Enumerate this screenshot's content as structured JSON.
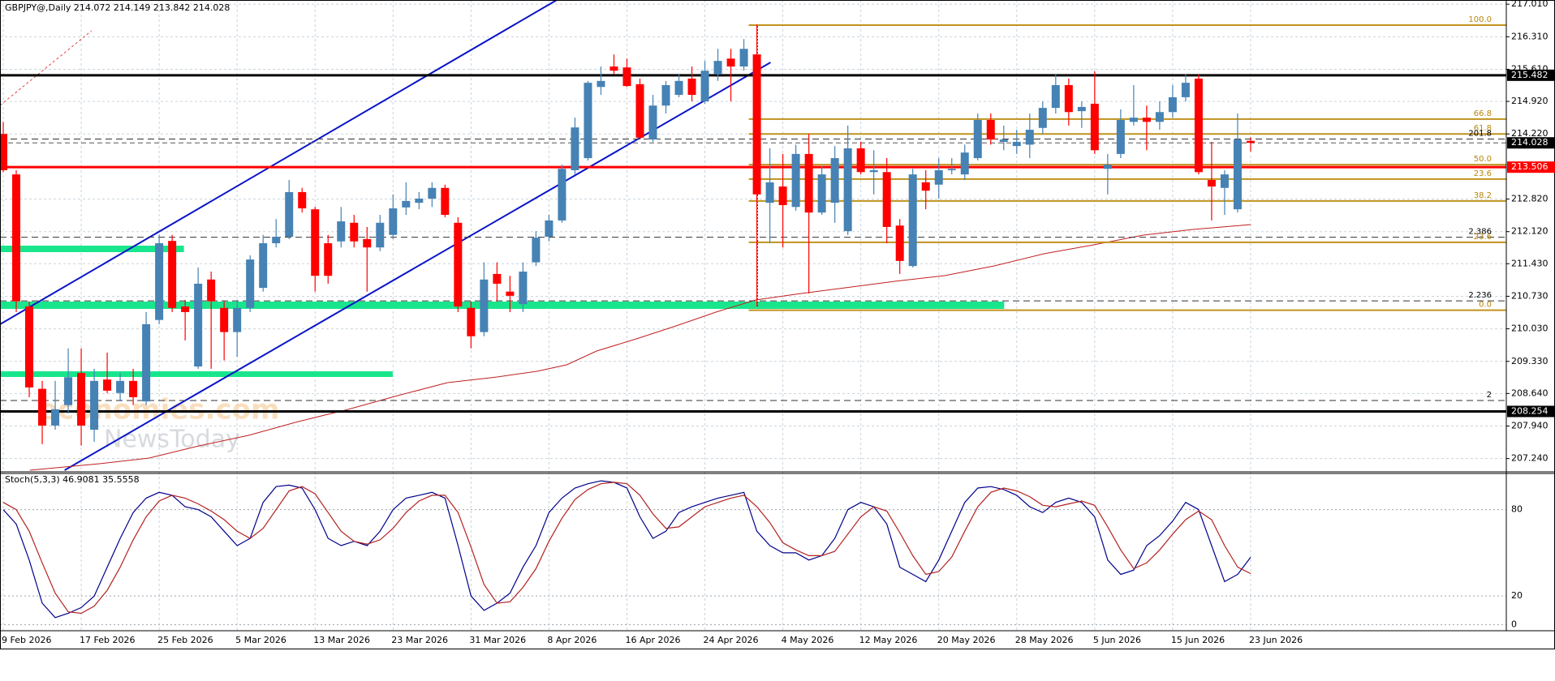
{
  "chart_data": [
    {
      "type": "candlestick",
      "symbol": "GBPJPY@,Daily",
      "up_color": "#4682b4",
      "down_color": "#ff0000",
      "grid": true,
      "categories": [
        "9 Feb 2026",
        null,
        null,
        null,
        null,
        null,
        "17 Feb 2026",
        null,
        null,
        null,
        null,
        null,
        "25 Feb 2026",
        null,
        null,
        null,
        null,
        null,
        "5 Mar 2026",
        null,
        null,
        null,
        null,
        null,
        "13 Mar 2026",
        null,
        null,
        null,
        null,
        null,
        "23 Mar 2026",
        null,
        null,
        null,
        null,
        null,
        "31 Mar 2026",
        null,
        null,
        null,
        null,
        null,
        "8 Apr 2026",
        null,
        null,
        null,
        null,
        null,
        "16 Apr 2026",
        null,
        null,
        null,
        null,
        null,
        "24 Apr 2026",
        null,
        null,
        null,
        null,
        null,
        "4 May 2026",
        null,
        null,
        null,
        null,
        null,
        "12 May 2026",
        null,
        null,
        null,
        null,
        null,
        "20 May 2026",
        null,
        null,
        null,
        null,
        null,
        "28 May 2026",
        null,
        null,
        null,
        null,
        null,
        "5 Jun 2026",
        null,
        null,
        null,
        null,
        null,
        "15 Jun 2026",
        null,
        null,
        null,
        null,
        null,
        "23 Jun 2026"
      ],
      "open": [
        214.22,
        213.35,
        210.51,
        208.74,
        207.95,
        208.39,
        209.08,
        207.86,
        208.94,
        208.65,
        208.91,
        208.47,
        210.22,
        211.92,
        210.51,
        209.22,
        211.09,
        210.48,
        209.96,
        210.48,
        210.91,
        211.87,
        212.01,
        212.97,
        212.6,
        211.87,
        211.91,
        212.31,
        211.96,
        211.78,
        212.05,
        212.64,
        212.74,
        212.83,
        213.06,
        212.31,
        210.48,
        209.96,
        211.21,
        210.83,
        210.56,
        211.46,
        212.01,
        212.36,
        213.44,
        213.7,
        215.23,
        215.67,
        215.65,
        215.29,
        214.1,
        214.83,
        215.06,
        215.41,
        214.92,
        215.5,
        215.84,
        215.67,
        215.93,
        212.74,
        213.09,
        212.65,
        213.79,
        212.53,
        212.74,
        212.13,
        213.91,
        213.4,
        213.4,
        212.25,
        211.38,
        213.18,
        213.13,
        213.44,
        213.35,
        213.7,
        214.52,
        214.05,
        213.96,
        213.99,
        214.35,
        214.78,
        215.27,
        214.71,
        214.87,
        213.47,
        213.79,
        214.48,
        214.57,
        214.48,
        214.69,
        215.01,
        215.41,
        213.23,
        213.06,
        212.6,
        214.072
      ],
      "high": [
        214.48,
        213.44,
        210.62,
        208.91,
        208.91,
        209.61,
        209.61,
        209.17,
        209.52,
        209.08,
        209.17,
        210.39,
        212.05,
        212.05,
        210.65,
        211.35,
        211.26,
        210.62,
        210.65,
        211.61,
        212.05,
        212.39,
        213.23,
        213.06,
        212.65,
        212.05,
        212.65,
        212.48,
        212.22,
        212.48,
        212.92,
        213.18,
        212.97,
        213.18,
        213.13,
        212.43,
        210.62,
        211.46,
        211.46,
        211.17,
        211.46,
        212.13,
        212.48,
        213.56,
        214.57,
        215.36,
        215.67,
        215.93,
        215.84,
        215.41,
        215.06,
        215.36,
        215.5,
        215.67,
        215.79,
        216.05,
        216.05,
        216.26,
        216.57,
        213.91,
        213.79,
        213.99,
        214.22,
        213.53,
        213.96,
        214.4,
        214.05,
        213.87,
        213.7,
        212.39,
        213.47,
        213.44,
        213.7,
        213.7,
        213.99,
        214.66,
        214.66,
        214.4,
        214.31,
        214.66,
        214.92,
        215.5,
        215.41,
        214.92,
        215.57,
        213.79,
        214.75,
        215.27,
        214.83,
        214.92,
        215.27,
        215.5,
        215.5,
        214.05,
        213.44,
        214.66,
        214.149
      ],
      "low": [
        213.4,
        210.39,
        208.56,
        207.55,
        207.86,
        208.21,
        207.52,
        207.6,
        208.65,
        208.47,
        208.39,
        208.39,
        210.13,
        210.39,
        209.78,
        209.17,
        209.17,
        209.35,
        209.43,
        210.39,
        210.83,
        211.78,
        211.96,
        212.53,
        210.83,
        211.0,
        211.78,
        211.78,
        210.83,
        211.7,
        211.96,
        212.48,
        212.6,
        212.65,
        212.43,
        210.39,
        209.61,
        209.87,
        210.62,
        210.39,
        210.39,
        211.38,
        211.91,
        212.31,
        213.35,
        213.65,
        215.06,
        215.5,
        215.23,
        214.1,
        214.05,
        214.66,
        215.01,
        214.92,
        214.87,
        215.36,
        214.92,
        215.58,
        210.51,
        211.87,
        211.78,
        212.57,
        210.79,
        212.48,
        212.31,
        212.05,
        213.35,
        212.92,
        211.87,
        211.21,
        211.35,
        212.6,
        212.83,
        213.35,
        213.23,
        213.65,
        213.99,
        213.87,
        213.79,
        213.7,
        214.22,
        214.66,
        214.4,
        214.35,
        213.79,
        212.92,
        213.7,
        214.4,
        213.87,
        214.31,
        214.57,
        214.92,
        213.35,
        212.36,
        212.48,
        212.53,
        213.842
      ],
      "close": [
        213.44,
        210.62,
        208.77,
        207.95,
        208.3,
        208.99,
        207.95,
        208.91,
        208.7,
        208.91,
        208.56,
        210.13,
        211.87,
        210.48,
        210.39,
        211.0,
        210.62,
        209.96,
        210.48,
        211.52,
        211.87,
        212.01,
        212.97,
        212.62,
        211.17,
        211.17,
        212.34,
        211.91,
        211.78,
        212.31,
        212.62,
        212.78,
        212.83,
        213.06,
        212.48,
        210.51,
        209.87,
        211.09,
        211.0,
        210.74,
        211.26,
        211.99,
        212.36,
        213.47,
        214.36,
        215.32,
        215.36,
        215.58,
        215.25,
        214.14,
        214.83,
        215.27,
        215.36,
        215.06,
        215.58,
        215.79,
        215.67,
        216.05,
        212.92,
        213.18,
        212.69,
        213.79,
        212.53,
        213.35,
        213.7,
        213.91,
        213.4,
        213.44,
        212.22,
        211.49,
        213.35,
        213.0,
        213.44,
        213.47,
        213.82,
        214.52,
        214.1,
        214.1,
        214.05,
        214.31,
        214.78,
        215.27,
        214.69,
        214.8,
        213.87,
        213.56,
        214.52,
        214.57,
        214.48,
        214.69,
        215.01,
        215.32,
        213.4,
        213.09,
        213.35,
        214.1,
        214.028
      ],
      "ylim": [
        206.99,
        217.1
      ],
      "yticks": [
        {
          "value": 217.01,
          "label": "217.010"
        },
        {
          "value": 216.31,
          "label": "216.310"
        },
        {
          "value": 215.61,
          "label": "215.610"
        },
        {
          "value": 214.92,
          "label": "214.920"
        },
        {
          "value": 214.22,
          "label": "214.220"
        },
        {
          "value": 212.82,
          "label": "212.820"
        },
        {
          "value": 212.12,
          "label": "212.120"
        },
        {
          "value": 211.43,
          "label": "211.430"
        },
        {
          "value": 210.73,
          "label": "210.730"
        },
        {
          "value": 210.03,
          "label": "210.030"
        },
        {
          "value": 209.33,
          "label": "209.330"
        },
        {
          "value": 208.64,
          "label": "208.640"
        },
        {
          "value": 207.94,
          "label": "207.940"
        },
        {
          "value": 207.24,
          "label": "207.240"
        }
      ],
      "levels": [
        {
          "value": 215.482,
          "color": "#000000"
        },
        {
          "value": 213.506,
          "color": "#ff0000"
        },
        {
          "value": 208.254,
          "color": "#000000"
        }
      ],
      "fib_levels": [
        {
          "text": "100.0",
          "price": 216.56
        },
        {
          "text": "66.8",
          "price": 214.54
        },
        {
          "text": "61.8",
          "price": 214.22
        },
        {
          "text": "50.0",
          "price": 213.56
        },
        {
          "text": "23.6",
          "price": 213.25
        },
        {
          "text": "38.2",
          "price": 212.78
        },
        {
          "text": "23.6",
          "price": 211.89
        },
        {
          "text": "0.0",
          "price": 210.43
        }
      ],
      "fib_color": "#c0921e",
      "extension_levels": [
        {
          "text": "201.8",
          "price": 214.11
        },
        {
          "text": "2.386",
          "price": 212.0
        },
        {
          "text": "2.236",
          "price": 210.63
        },
        {
          "text": "2",
          "price": 208.49
        }
      ],
      "watermark": [
        "economies.com",
        "NewsToday"
      ]
    },
    {
      "type": "line",
      "title": "Stoch(5,3,3)",
      "series": [
        {
          "color": "#00008b",
          "values": [
            80,
            70,
            45,
            15,
            5,
            8,
            12,
            20,
            40,
            60,
            78,
            88,
            92,
            90,
            82,
            80,
            75,
            65,
            55,
            60,
            85,
            96,
            97,
            95,
            80,
            60,
            55,
            58,
            55,
            65,
            80,
            88,
            90,
            92,
            88,
            55,
            20,
            10,
            15,
            22,
            40,
            55,
            78,
            88,
            95,
            98,
            100,
            99,
            95,
            75,
            60,
            65,
            78,
            82,
            85,
            88,
            90,
            92,
            65,
            55,
            50,
            50,
            45,
            48,
            60,
            80,
            85,
            82,
            70,
            40,
            35,
            30,
            45,
            65,
            85,
            95,
            96,
            94,
            90,
            82,
            78,
            85,
            88,
            85,
            75,
            45,
            35,
            38,
            55,
            62,
            72,
            85,
            80,
            55,
            30,
            35,
            46.9081
          ]
        },
        {
          "color": "#b22222",
          "values": [
            85,
            80,
            65,
            43,
            22,
            9,
            8,
            13,
            24,
            40,
            59,
            75,
            86,
            90,
            88,
            84,
            79,
            73,
            65,
            60,
            67,
            80,
            93,
            96,
            91,
            78,
            65,
            58,
            56,
            59,
            67,
            78,
            86,
            90,
            90,
            78,
            54,
            28,
            15,
            16,
            26,
            39,
            58,
            74,
            87,
            94,
            98,
            99,
            98,
            90,
            77,
            67,
            68,
            75,
            82,
            85,
            88,
            90,
            82,
            71,
            57,
            52,
            48,
            48,
            51,
            63,
            75,
            82,
            79,
            64,
            48,
            35,
            37,
            47,
            65,
            82,
            92,
            95,
            93,
            89,
            83,
            82,
            84,
            86,
            83,
            68,
            52,
            39,
            43,
            52,
            63,
            73,
            79,
            73,
            55,
            40,
            35.5558
          ]
        }
      ],
      "ylim": [
        -3,
        104
      ],
      "yticks": [
        0,
        20,
        80
      ],
      "grid": true
    }
  ]
}
